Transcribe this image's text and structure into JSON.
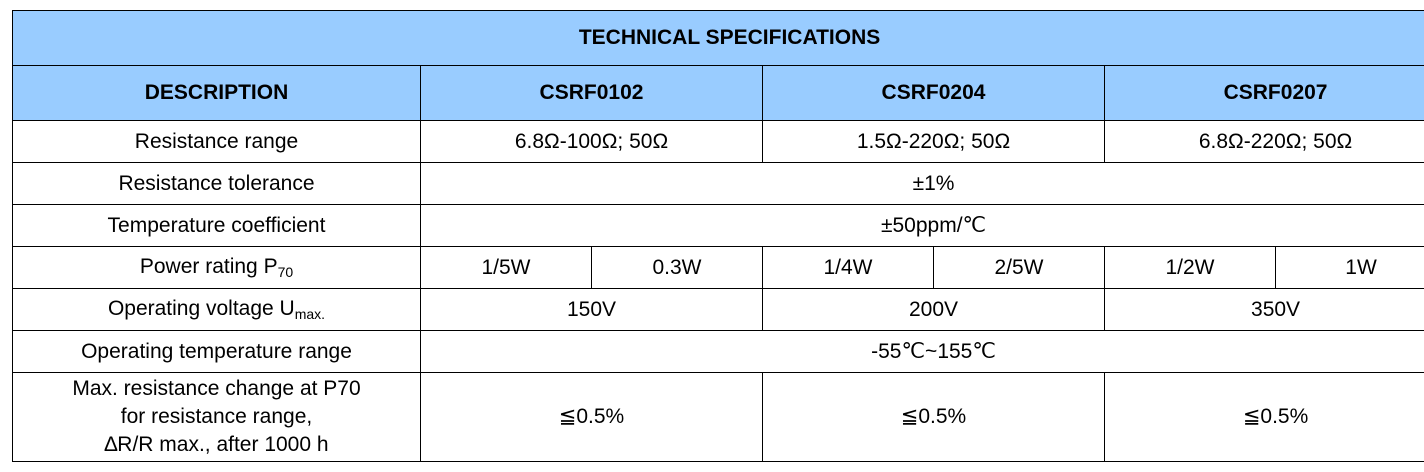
{
  "title": "TECHNICAL SPECIFICATIONS",
  "header": {
    "description": "DESCRIPTION",
    "models": [
      "CSRF0102",
      "CSRF0204",
      "CSRF0207"
    ]
  },
  "rows": {
    "resistance_range": {
      "label": "Resistance range",
      "values": [
        "6.8Ω-100Ω; 50Ω",
        "1.5Ω-220Ω; 50Ω",
        "6.8Ω-220Ω; 50Ω"
      ]
    },
    "tolerance": {
      "label": "Resistance tolerance",
      "value": "±1%"
    },
    "temp_coefficient": {
      "label": "Temperature coefficient",
      "value": "±50ppm/℃"
    },
    "power_rating": {
      "label": "Power rating P",
      "label_sub": "70",
      "values": [
        "1/5W",
        "0.3W",
        "1/4W",
        "2/5W",
        "1/2W",
        "1W"
      ]
    },
    "operating_voltage": {
      "label": "Operating voltage U",
      "label_sub": "max.",
      "values": [
        "150V",
        "200V",
        "350V"
      ]
    },
    "operating_temp": {
      "label": "Operating temperature range",
      "value": "-55℃~155℃"
    },
    "max_change": {
      "label_lines": [
        "Max. resistance change at P70",
        "for resistance range,",
        "∆R/R max., after 1000 h"
      ],
      "values": [
        "≦0.5%",
        "≦0.5%",
        "≦0.5%"
      ]
    }
  }
}
